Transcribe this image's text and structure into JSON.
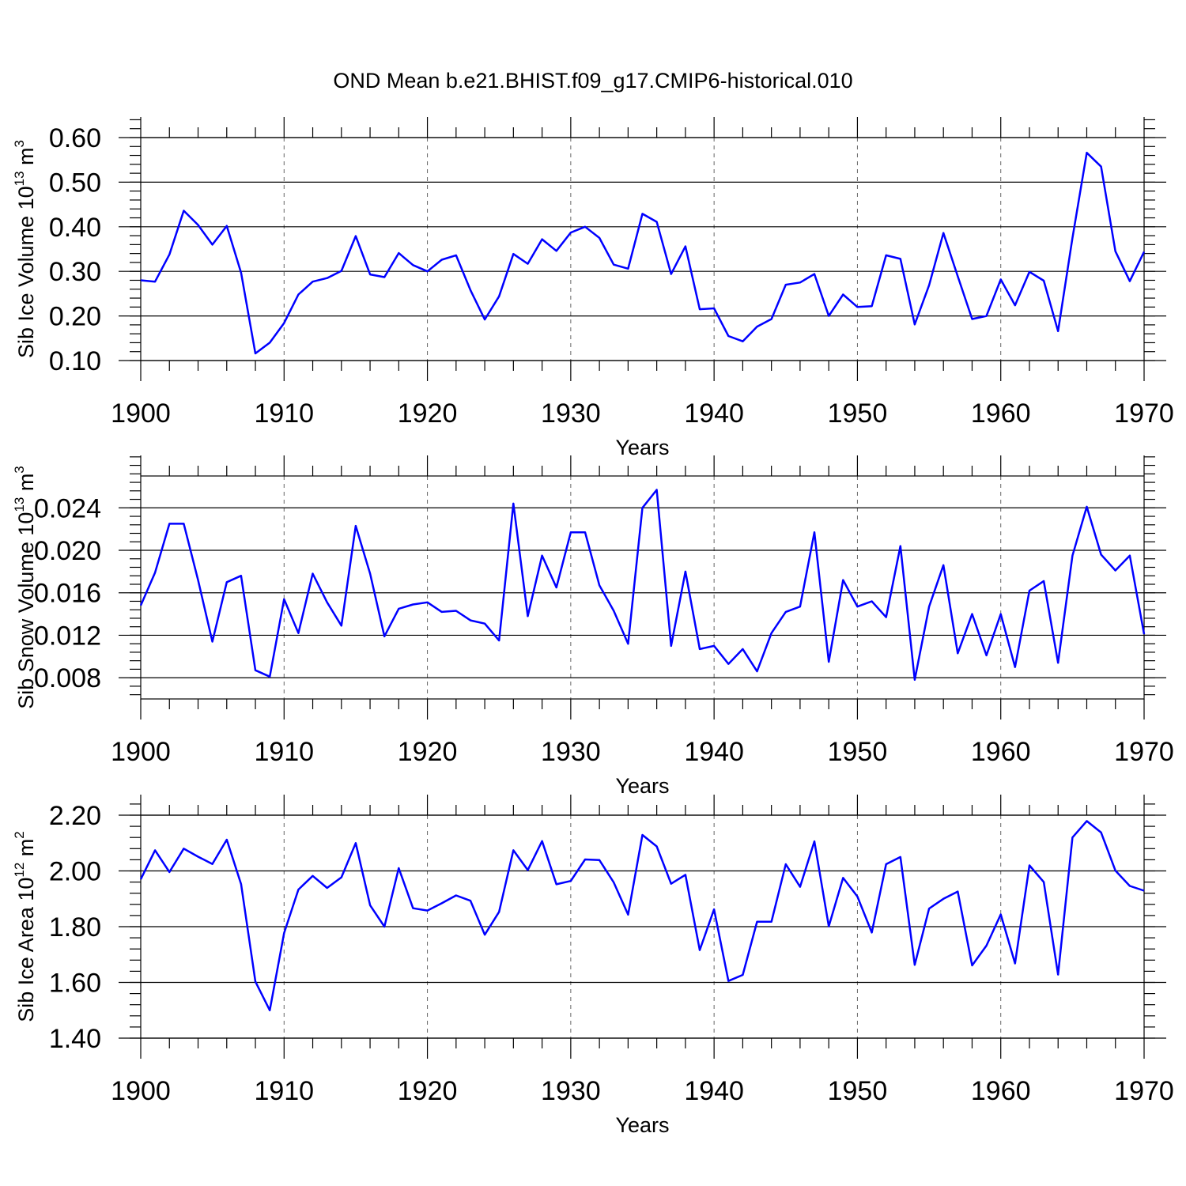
{
  "title": "OND Mean b.e21.BHIST.f09_g17.CMIP6-historical.010",
  "line_color": "#0000ff",
  "chart_data": [
    {
      "type": "line",
      "title": "OND Mean b.e21.BHIST.f09_g17.CMIP6-historical.010",
      "xlabel": "Years",
      "ylabel": {
        "main": "Sib Ice Volume 10",
        "sup": "13",
        "unit": " m",
        "unit_sup": "3"
      },
      "xlim": [
        1900,
        1970
      ],
      "ylim": [
        0.1,
        0.6
      ],
      "yticks": [
        0.1,
        0.2,
        0.3,
        0.4,
        0.5,
        0.6
      ],
      "ytick_labels": [
        "0.10",
        "0.20",
        "0.30",
        "0.40",
        "0.50",
        "0.60"
      ],
      "xticks": [
        1900,
        1910,
        1920,
        1930,
        1940,
        1950,
        1960,
        1970
      ],
      "xtick_labels": [
        "1900",
        "1910",
        "1920",
        "1930",
        "1940",
        "1950",
        "1960",
        "1970"
      ],
      "grid": "vertical dashed at decades",
      "x": [
        1900,
        1901,
        1902,
        1903,
        1904,
        1905,
        1906,
        1907,
        1908,
        1909,
        1910,
        1911,
        1912,
        1913,
        1914,
        1915,
        1916,
        1917,
        1918,
        1919,
        1920,
        1921,
        1922,
        1923,
        1924,
        1925,
        1926,
        1927,
        1928,
        1929,
        1930,
        1931,
        1932,
        1933,
        1934,
        1935,
        1936,
        1937,
        1938,
        1939,
        1940,
        1941,
        1942,
        1943,
        1944,
        1945,
        1946,
        1947,
        1948,
        1949,
        1950,
        1951,
        1952,
        1953,
        1954,
        1955,
        1956,
        1957,
        1958,
        1959,
        1960,
        1961,
        1962,
        1963,
        1964,
        1965,
        1966,
        1967,
        1968,
        1969,
        1970
      ],
      "series": [
        {
          "values": [
            0.28,
            0.277,
            0.338,
            0.436,
            0.404,
            0.36,
            0.402,
            0.297,
            0.116,
            0.14,
            0.184,
            0.248,
            0.277,
            0.285,
            0.301,
            0.379,
            0.293,
            0.287,
            0.341,
            0.314,
            0.3,
            0.326,
            0.336,
            0.258,
            0.192,
            0.244,
            0.339,
            0.317,
            0.372,
            0.346,
            0.387,
            0.4,
            0.375,
            0.315,
            0.306,
            0.429,
            0.411,
            0.294,
            0.356,
            0.215,
            0.217,
            0.155,
            0.143,
            0.176,
            0.193,
            0.27,
            0.275,
            0.294,
            0.2,
            0.248,
            0.22,
            0.222,
            0.336,
            0.328,
            0.181,
            0.269,
            0.386,
            0.289,
            0.193,
            0.2,
            0.282,
            0.224,
            0.299,
            0.279,
            0.166,
            0.375,
            0.566,
            0.535,
            0.345,
            0.278,
            0.344
          ]
        }
      ]
    },
    {
      "type": "line",
      "xlabel": "Years",
      "ylabel": {
        "main": "Sib Snow Volume 10",
        "sup": "13",
        "unit": " m",
        "unit_sup": "3"
      },
      "xlim": [
        1900,
        1970
      ],
      "ylim": [
        0.006,
        0.027
      ],
      "yticks": [
        0.008,
        0.012,
        0.016,
        0.02,
        0.024
      ],
      "ytick_labels": [
        "0.008",
        "0.012",
        "0.016",
        "0.020",
        "0.024"
      ],
      "xticks": [
        1900,
        1910,
        1920,
        1930,
        1940,
        1950,
        1960,
        1970
      ],
      "xtick_labels": [
        "1900",
        "1910",
        "1920",
        "1930",
        "1940",
        "1950",
        "1960",
        "1970"
      ],
      "grid": "vertical dashed at decades",
      "x": [
        1900,
        1901,
        1902,
        1903,
        1904,
        1905,
        1906,
        1907,
        1908,
        1909,
        1910,
        1911,
        1912,
        1913,
        1914,
        1915,
        1916,
        1917,
        1918,
        1919,
        1920,
        1921,
        1922,
        1923,
        1924,
        1925,
        1926,
        1927,
        1928,
        1929,
        1930,
        1931,
        1932,
        1933,
        1934,
        1935,
        1936,
        1937,
        1938,
        1939,
        1940,
        1941,
        1942,
        1943,
        1944,
        1945,
        1946,
        1947,
        1948,
        1949,
        1950,
        1951,
        1952,
        1953,
        1954,
        1955,
        1956,
        1957,
        1958,
        1959,
        1960,
        1961,
        1962,
        1963,
        1964,
        1965,
        1966,
        1967,
        1968,
        1969,
        1970
      ],
      "series": [
        {
          "values": [
            0.0148,
            0.0179,
            0.0225,
            0.0225,
            0.0172,
            0.0114,
            0.017,
            0.0176,
            0.0087,
            0.0081,
            0.0154,
            0.0122,
            0.0178,
            0.0151,
            0.0129,
            0.0223,
            0.0178,
            0.0119,
            0.0145,
            0.0149,
            0.0151,
            0.0142,
            0.0143,
            0.0134,
            0.0131,
            0.0115,
            0.0244,
            0.0138,
            0.0195,
            0.0165,
            0.0217,
            0.0217,
            0.0167,
            0.0143,
            0.0112,
            0.024,
            0.0257,
            0.011,
            0.018,
            0.0107,
            0.011,
            0.0093,
            0.0107,
            0.0086,
            0.0122,
            0.0142,
            0.0147,
            0.0217,
            0.0095,
            0.0172,
            0.0147,
            0.0152,
            0.0137,
            0.0204,
            0.0078,
            0.0147,
            0.0186,
            0.0103,
            0.014,
            0.0101,
            0.014,
            0.009,
            0.0162,
            0.0171,
            0.0094,
            0.0195,
            0.0241,
            0.0196,
            0.0181,
            0.0195,
            0.0121
          ]
        }
      ]
    },
    {
      "type": "line",
      "xlabel": "Years",
      "ylabel": {
        "main": "Sib Ice Area 10",
        "sup": "12",
        "unit": " m",
        "unit_sup": "2"
      },
      "xlim": [
        1900,
        1970
      ],
      "ylim": [
        1.4,
        2.2
      ],
      "yticks": [
        1.4,
        1.6,
        1.8,
        2.0,
        2.2
      ],
      "ytick_labels": [
        "1.40",
        "1.60",
        "1.80",
        "2.00",
        "2.20"
      ],
      "xticks": [
        1900,
        1910,
        1920,
        1930,
        1940,
        1950,
        1960,
        1970
      ],
      "xtick_labels": [
        "1900",
        "1910",
        "1920",
        "1930",
        "1940",
        "1950",
        "1960",
        "1970"
      ],
      "grid": "vertical dashed at decades",
      "x": [
        1900,
        1901,
        1902,
        1903,
        1904,
        1905,
        1906,
        1907,
        1908,
        1909,
        1910,
        1911,
        1912,
        1913,
        1914,
        1915,
        1916,
        1917,
        1918,
        1919,
        1920,
        1921,
        1922,
        1923,
        1924,
        1925,
        1926,
        1927,
        1928,
        1929,
        1930,
        1931,
        1932,
        1933,
        1934,
        1935,
        1936,
        1937,
        1938,
        1939,
        1940,
        1941,
        1942,
        1943,
        1944,
        1945,
        1946,
        1947,
        1948,
        1949,
        1950,
        1951,
        1952,
        1953,
        1954,
        1955,
        1956,
        1957,
        1958,
        1959,
        1960,
        1961,
        1962,
        1963,
        1964,
        1965,
        1966,
        1967,
        1968,
        1969,
        1970
      ],
      "series": [
        {
          "values": [
            1.97,
            2.074,
            1.996,
            2.08,
            2.051,
            2.025,
            2.112,
            1.953,
            1.603,
            1.5,
            1.777,
            1.933,
            1.982,
            1.939,
            1.977,
            2.1,
            1.877,
            1.8,
            2.01,
            1.866,
            1.858,
            1.884,
            1.912,
            1.893,
            1.771,
            1.853,
            2.074,
            2.003,
            2.107,
            1.952,
            1.964,
            2.041,
            2.039,
            1.959,
            1.843,
            2.129,
            2.088,
            1.954,
            1.986,
            1.716,
            1.862,
            1.605,
            1.627,
            1.818,
            1.818,
            2.024,
            1.943,
            2.106,
            1.801,
            1.975,
            1.908,
            1.779,
            2.024,
            2.05,
            1.663,
            1.865,
            1.9,
            1.926,
            1.661,
            1.732,
            1.844,
            1.668,
            2.02,
            1.96,
            1.628,
            2.12,
            2.179,
            2.138,
            2.001,
            1.946,
            1.929
          ]
        }
      ]
    }
  ]
}
